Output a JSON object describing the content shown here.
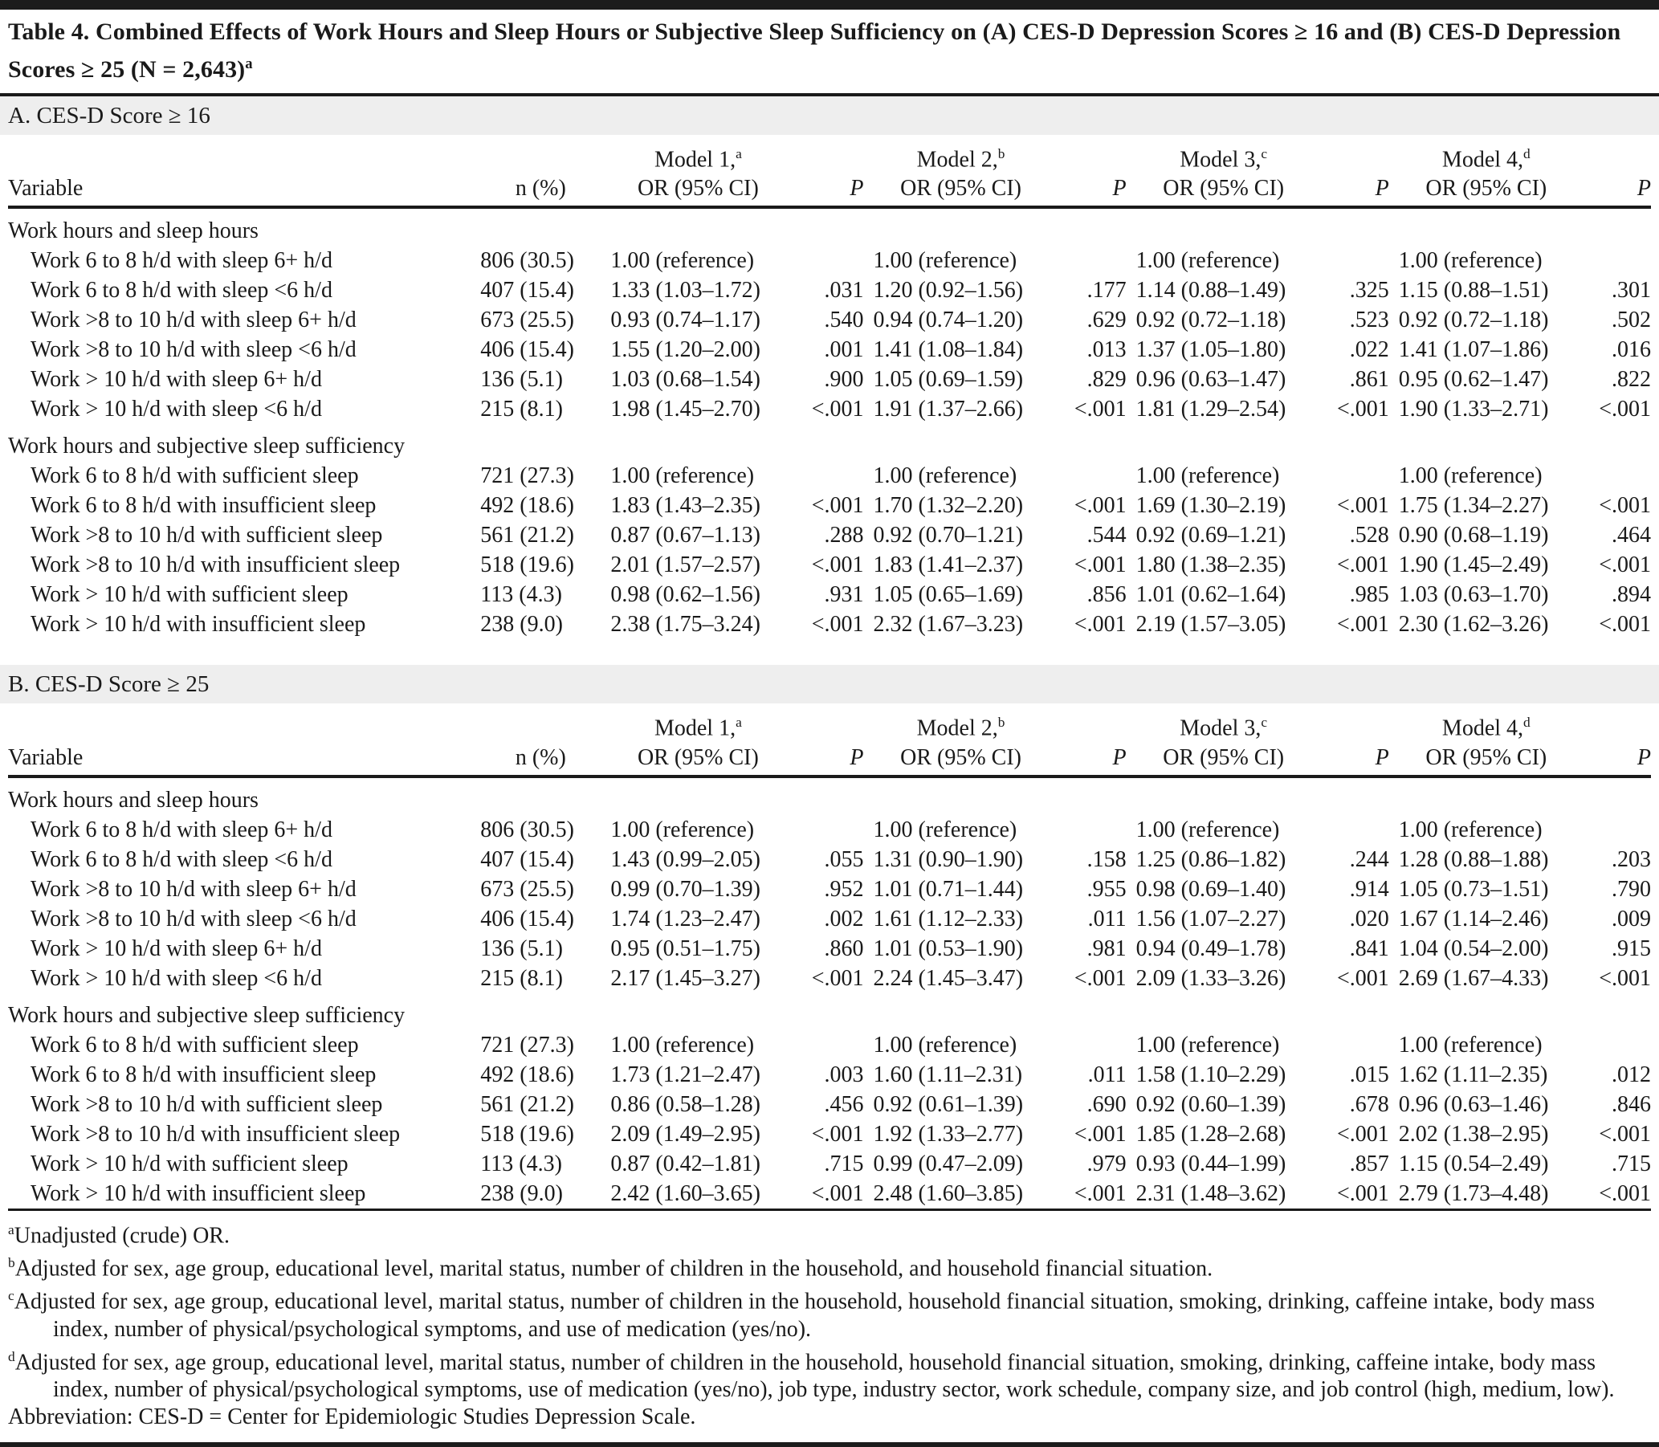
{
  "title": {
    "text": "Table 4. Combined Effects of Work Hours and Sleep Hours or Subjective Sleep Sufficiency on (A) CES-D Depression Scores ≥ 16 and (B) CES-D Depression Scores ≥ 25 (N = 2,643)",
    "sup": "a"
  },
  "columns": {
    "variable": "Variable",
    "n": "n (%)",
    "or": "OR (95% CI)",
    "p": "P",
    "models": [
      {
        "label": "Model 1,",
        "sup": "a"
      },
      {
        "label": "Model 2,",
        "sup": "b"
      },
      {
        "label": "Model 3,",
        "sup": "c"
      },
      {
        "label": "Model 4,",
        "sup": "d"
      }
    ]
  },
  "panels": [
    {
      "heading": "A. CES-D Score ≥ 16",
      "sections": [
        {
          "label": "Work hours and sleep hours",
          "rows": [
            {
              "variable": "Work 6 to 8 h/d with sleep 6+ h/d",
              "n": "806 (30.5)",
              "m1": "1.00 (reference)",
              "p1": "",
              "m2": "1.00 (reference)",
              "p2": "",
              "m3": "1.00 (reference)",
              "p3": "",
              "m4": "1.00 (reference)",
              "p4": ""
            },
            {
              "variable": "Work 6 to 8 h/d with sleep <6 h/d",
              "n": "407 (15.4)",
              "m1": "1.33 (1.03–1.72)",
              "p1": ".031",
              "m2": "1.20 (0.92–1.56)",
              "p2": ".177",
              "m3": "1.14 (0.88–1.49)",
              "p3": ".325",
              "m4": "1.15 (0.88–1.51)",
              "p4": ".301"
            },
            {
              "variable": "Work >8 to 10 h/d with sleep 6+ h/d",
              "n": "673 (25.5)",
              "m1": "0.93 (0.74–1.17)",
              "p1": ".540",
              "m2": "0.94 (0.74–1.20)",
              "p2": ".629",
              "m3": "0.92 (0.72–1.18)",
              "p3": ".523",
              "m4": "0.92 (0.72–1.18)",
              "p4": ".502"
            },
            {
              "variable": "Work >8 to 10 h/d with sleep <6 h/d",
              "n": "406 (15.4)",
              "m1": "1.55 (1.20–2.00)",
              "p1": ".001",
              "m2": "1.41 (1.08–1.84)",
              "p2": ".013",
              "m3": "1.37 (1.05–1.80)",
              "p3": ".022",
              "m4": "1.41 (1.07–1.86)",
              "p4": ".016"
            },
            {
              "variable": "Work > 10 h/d with sleep 6+ h/d",
              "n": "136 (5.1)",
              "m1": "1.03 (0.68–1.54)",
              "p1": ".900",
              "m2": "1.05 (0.69–1.59)",
              "p2": ".829",
              "m3": "0.96 (0.63–1.47)",
              "p3": ".861",
              "m4": "0.95 (0.62–1.47)",
              "p4": ".822"
            },
            {
              "variable": "Work > 10 h/d with sleep <6 h/d",
              "n": "215 (8.1)",
              "m1": "1.98 (1.45–2.70)",
              "p1": "<.001",
              "m2": "1.91 (1.37–2.66)",
              "p2": "<.001",
              "m3": "1.81 (1.29–2.54)",
              "p3": "<.001",
              "m4": "1.90 (1.33–2.71)",
              "p4": "<.001"
            }
          ]
        },
        {
          "label": "Work hours and subjective sleep sufficiency",
          "rows": [
            {
              "variable": "Work 6 to 8 h/d with sufficient sleep",
              "n": "721 (27.3)",
              "m1": "1.00 (reference)",
              "p1": "",
              "m2": "1.00 (reference)",
              "p2": "",
              "m3": "1.00 (reference)",
              "p3": "",
              "m4": "1.00 (reference)",
              "p4": ""
            },
            {
              "variable": "Work 6 to 8 h/d with insufficient sleep",
              "n": "492 (18.6)",
              "m1": "1.83 (1.43–2.35)",
              "p1": "<.001",
              "m2": "1.70 (1.32–2.20)",
              "p2": "<.001",
              "m3": "1.69 (1.30–2.19)",
              "p3": "<.001",
              "m4": "1.75 (1.34–2.27)",
              "p4": "<.001"
            },
            {
              "variable": "Work >8 to 10 h/d with sufficient sleep",
              "n": "561 (21.2)",
              "m1": "0.87 (0.67–1.13)",
              "p1": ".288",
              "m2": "0.92 (0.70–1.21)",
              "p2": ".544",
              "m3": "0.92 (0.69–1.21)",
              "p3": ".528",
              "m4": "0.90 (0.68–1.19)",
              "p4": ".464"
            },
            {
              "variable": "Work >8 to 10 h/d with insufficient sleep",
              "n": "518 (19.6)",
              "m1": "2.01 (1.57–2.57)",
              "p1": "<.001",
              "m2": "1.83 (1.41–2.37)",
              "p2": "<.001",
              "m3": "1.80 (1.38–2.35)",
              "p3": "<.001",
              "m4": "1.90 (1.45–2.49)",
              "p4": "<.001"
            },
            {
              "variable": "Work > 10 h/d with sufficient sleep",
              "n": "113 (4.3)",
              "m1": "0.98 (0.62–1.56)",
              "p1": ".931",
              "m2": "1.05 (0.65–1.69)",
              "p2": ".856",
              "m3": "1.01 (0.62–1.64)",
              "p3": ".985",
              "m4": "1.03 (0.63–1.70)",
              "p4": ".894"
            },
            {
              "variable": "Work > 10 h/d with insufficient sleep",
              "n": "238 (9.0)",
              "m1": "2.38 (1.75–3.24)",
              "p1": "<.001",
              "m2": "2.32 (1.67–3.23)",
              "p2": "<.001",
              "m3": "2.19 (1.57–3.05)",
              "p3": "<.001",
              "m4": "2.30 (1.62–3.26)",
              "p4": "<.001"
            }
          ]
        }
      ]
    },
    {
      "heading": "B. CES-D Score ≥ 25",
      "sections": [
        {
          "label": "Work hours and sleep hours",
          "rows": [
            {
              "variable": "Work 6 to 8 h/d with sleep 6+ h/d",
              "n": "806 (30.5)",
              "m1": "1.00 (reference)",
              "p1": "",
              "m2": "1.00 (reference)",
              "p2": "",
              "m3": "1.00 (reference)",
              "p3": "",
              "m4": "1.00 (reference)",
              "p4": ""
            },
            {
              "variable": "Work 6 to 8 h/d with sleep <6 h/d",
              "n": "407 (15.4)",
              "m1": "1.43 (0.99–2.05)",
              "p1": ".055",
              "m2": "1.31 (0.90–1.90)",
              "p2": ".158",
              "m3": "1.25 (0.86–1.82)",
              "p3": ".244",
              "m4": "1.28 (0.88–1.88)",
              "p4": ".203"
            },
            {
              "variable": "Work >8 to 10 h/d with sleep 6+ h/d",
              "n": "673 (25.5)",
              "m1": "0.99 (0.70–1.39)",
              "p1": ".952",
              "m2": "1.01 (0.71–1.44)",
              "p2": ".955",
              "m3": "0.98 (0.69–1.40)",
              "p3": ".914",
              "m4": "1.05 (0.73–1.51)",
              "p4": ".790"
            },
            {
              "variable": "Work >8 to 10 h/d with sleep <6 h/d",
              "n": "406 (15.4)",
              "m1": "1.74 (1.23–2.47)",
              "p1": ".002",
              "m2": "1.61 (1.12–2.33)",
              "p2": ".011",
              "m3": "1.56 (1.07–2.27)",
              "p3": ".020",
              "m4": "1.67 (1.14–2.46)",
              "p4": ".009"
            },
            {
              "variable": "Work > 10 h/d with sleep 6+ h/d",
              "n": "136 (5.1)",
              "m1": "0.95 (0.51–1.75)",
              "p1": ".860",
              "m2": "1.01 (0.53–1.90)",
              "p2": ".981",
              "m3": "0.94 (0.49–1.78)",
              "p3": ".841",
              "m4": "1.04 (0.54–2.00)",
              "p4": ".915"
            },
            {
              "variable": "Work > 10 h/d with sleep <6 h/d",
              "n": "215 (8.1)",
              "m1": "2.17 (1.45–3.27)",
              "p1": "<.001",
              "m2": "2.24 (1.45–3.47)",
              "p2": "<.001",
              "m3": "2.09 (1.33–3.26)",
              "p3": "<.001",
              "m4": "2.69 (1.67–4.33)",
              "p4": "<.001"
            }
          ]
        },
        {
          "label": "Work hours and subjective sleep sufficiency",
          "rows": [
            {
              "variable": "Work 6 to 8 h/d with sufficient sleep",
              "n": "721 (27.3)",
              "m1": "1.00 (reference)",
              "p1": "",
              "m2": "1.00 (reference)",
              "p2": "",
              "m3": "1.00 (reference)",
              "p3": "",
              "m4": "1.00 (reference)",
              "p4": ""
            },
            {
              "variable": "Work 6 to 8 h/d with insufficient sleep",
              "n": "492 (18.6)",
              "m1": "1.73 (1.21–2.47)",
              "p1": ".003",
              "m2": "1.60 (1.11–2.31)",
              "p2": ".011",
              "m3": "1.58 (1.10–2.29)",
              "p3": ".015",
              "m4": "1.62 (1.11–2.35)",
              "p4": ".012"
            },
            {
              "variable": "Work >8 to 10 h/d with sufficient sleep",
              "n": "561 (21.2)",
              "m1": "0.86 (0.58–1.28)",
              "p1": ".456",
              "m2": "0.92 (0.61–1.39)",
              "p2": ".690",
              "m3": "0.92 (0.60–1.39)",
              "p3": ".678",
              "m4": "0.96 (0.63–1.46)",
              "p4": ".846"
            },
            {
              "variable": "Work >8 to 10 h/d with insufficient sleep",
              "n": "518 (19.6)",
              "m1": "2.09 (1.49–2.95)",
              "p1": "<.001",
              "m2": "1.92 (1.33–2.77)",
              "p2": "<.001",
              "m3": "1.85 (1.28–2.68)",
              "p3": "<.001",
              "m4": "2.02 (1.38–2.95)",
              "p4": "<.001"
            },
            {
              "variable": "Work > 10 h/d with sufficient sleep",
              "n": "113 (4.3)",
              "m1": "0.87 (0.42–1.81)",
              "p1": ".715",
              "m2": "0.99 (0.47–2.09)",
              "p2": ".979",
              "m3": "0.93 (0.44–1.99)",
              "p3": ".857",
              "m4": "1.15 (0.54–2.49)",
              "p4": ".715"
            },
            {
              "variable": "Work > 10 h/d with insufficient sleep",
              "n": "238 (9.0)",
              "m1": "2.42 (1.60–3.65)",
              "p1": "<.001",
              "m2": "2.48 (1.60–3.85)",
              "p2": "<.001",
              "m3": "2.31 (1.48–3.62)",
              "p3": "<.001",
              "m4": "2.79 (1.73–4.48)",
              "p4": "<.001"
            }
          ]
        }
      ]
    }
  ],
  "footnotes": [
    {
      "sup": "a",
      "text": "Unadjusted (crude) OR."
    },
    {
      "sup": "b",
      "text": "Adjusted for sex, age group, educational level, marital status, number of children in the household, and household financial situation."
    },
    {
      "sup": "c",
      "text": "Adjusted for sex, age group, educational level, marital status, number of children in the household, household financial situation, smoking, drinking, caffeine intake, body mass index, number of physical/psychological symptoms, and use of medication (yes/no)."
    },
    {
      "sup": "d",
      "text": "Adjusted for sex, age group, educational level, marital status, number of children in the household, household financial situation, smoking, drinking, caffeine intake, body mass index, number of physical/psychological symptoms, use of medication (yes/no), job type, industry sector, work schedule, company size, and job control (high, medium, low)."
    },
    {
      "sup": "",
      "text": "Abbreviation: CES-D = Center for Epidemiologic Studies Depression Scale."
    }
  ],
  "colors": {
    "text": "#1a1a1a",
    "rule": "#1c1c1c",
    "section_band_bg": "#eeeeee",
    "page_bg": "#ffffff"
  }
}
